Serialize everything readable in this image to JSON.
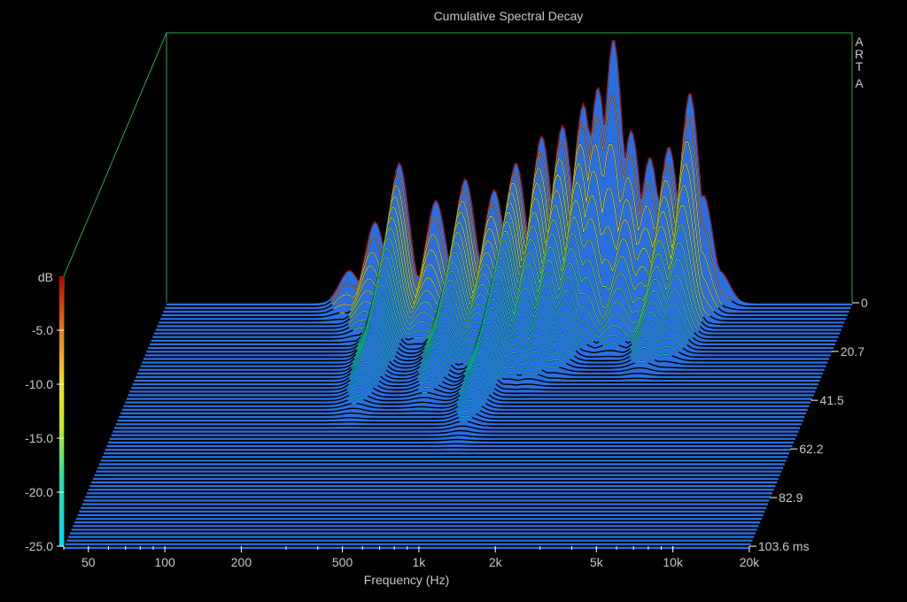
{
  "chart_data": {
    "type": "waterfall",
    "title": "Cumulative Spectral Decay",
    "brand": [
      "A",
      "R",
      "T",
      "A"
    ],
    "xlabel": "Frequency (Hz)",
    "xscale": "log",
    "xlim": [
      40,
      20000
    ],
    "x_ticks": [
      {
        "value": 50,
        "label": "50"
      },
      {
        "value": 100,
        "label": "100"
      },
      {
        "value": 200,
        "label": "200"
      },
      {
        "value": 500,
        "label": "500"
      },
      {
        "value": 1000,
        "label": "1k"
      },
      {
        "value": 2000,
        "label": "2k"
      },
      {
        "value": 5000,
        "label": "5k"
      },
      {
        "value": 10000,
        "label": "10k"
      },
      {
        "value": 20000,
        "label": "20k"
      }
    ],
    "zlabel": "dB",
    "zlim": [
      -25,
      0
    ],
    "z_ticks": [
      {
        "value": -5,
        "label": "-5.0"
      },
      {
        "value": -10,
        "label": "-10.0"
      },
      {
        "value": -15,
        "label": "-15.0"
      },
      {
        "value": -20,
        "label": "-20.0"
      },
      {
        "value": -25,
        "label": "-25.0"
      }
    ],
    "time_unit": "ms",
    "tlim": [
      0,
      103.6
    ],
    "t_ticks": [
      {
        "value": 0,
        "label": "0"
      },
      {
        "value": 20.7,
        "label": "20.7"
      },
      {
        "value": 41.5,
        "label": "41.5"
      },
      {
        "value": 62.2,
        "label": "62.2"
      },
      {
        "value": 82.9,
        "label": "82.9"
      },
      {
        "value": 103.6,
        "label": "103.6 ms"
      }
    ],
    "colormap": [
      "#1e6fd8",
      "#00c8e8",
      "#40e890",
      "#e8e830",
      "#f0a020",
      "#e02010",
      "#b00000"
    ],
    "floor_color": "#2a6fe0",
    "frame_color": "#2fa84a",
    "peaks": [
      {
        "frequency": 210,
        "db": -22.0,
        "decay_ms": 10
      },
      {
        "frequency": 265,
        "db": -17.5,
        "decay_ms": 20
      },
      {
        "frequency": 330,
        "db": -12.0,
        "decay_ms": 55
      },
      {
        "frequency": 460,
        "db": -15.5,
        "decay_ms": 22
      },
      {
        "frequency": 600,
        "db": -13.5,
        "decay_ms": 50
      },
      {
        "frequency": 780,
        "db": -14.5,
        "decay_ms": 35
      },
      {
        "frequency": 950,
        "db": -12.0,
        "decay_ms": 65
      },
      {
        "frequency": 1200,
        "db": -9.5,
        "decay_ms": 40
      },
      {
        "frequency": 1450,
        "db": -8.5,
        "decay_ms": 40
      },
      {
        "frequency": 1750,
        "db": -6.5,
        "decay_ms": 35
      },
      {
        "frequency": 2000,
        "db": -5.0,
        "decay_ms": 25
      },
      {
        "frequency": 2300,
        "db": -0.5,
        "decay_ms": 15
      },
      {
        "frequency": 2700,
        "db": -9.0,
        "decay_ms": 25
      },
      {
        "frequency": 3200,
        "db": -11.5,
        "decay_ms": 20
      },
      {
        "frequency": 3800,
        "db": -10.5,
        "decay_ms": 35
      },
      {
        "frequency": 4600,
        "db": -5.5,
        "decay_ms": 30
      },
      {
        "frequency": 5200,
        "db": -15.0,
        "decay_ms": 12
      },
      {
        "frequency": 6000,
        "db": -22.0,
        "decay_ms": 5
      }
    ]
  }
}
